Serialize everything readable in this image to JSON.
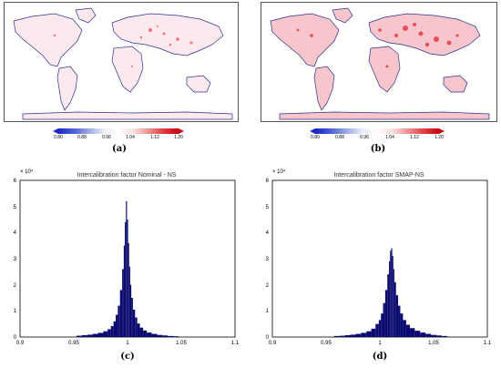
{
  "panels": {
    "a": "(a)",
    "b": "(b)",
    "c": "(c)",
    "d": "(d)"
  },
  "colorbar": {
    "ticks": [
      "0.80",
      "0.88",
      "0.96",
      "1.04",
      "1.12",
      "1.20"
    ],
    "colors": [
      "#1a28c8",
      "#ffffff",
      "#c80010"
    ]
  },
  "chart_data": [
    {
      "type": "bar",
      "title": "Intercalibration factor Nominal - NS",
      "y_multiplier_label": "× 10⁴",
      "xlim": [
        0.9,
        1.1
      ],
      "ylim": [
        0,
        6
      ],
      "x_ticks": [
        "0.9",
        "0.95",
        "1",
        "1.05",
        "1.1"
      ],
      "y_ticks": [
        "0",
        "1",
        "2",
        "3",
        "4",
        "5",
        "6"
      ],
      "bar_color": "#0a0a6e",
      "x": [
        0.955,
        0.96,
        0.965,
        0.97,
        0.975,
        0.98,
        0.983,
        0.986,
        0.988,
        0.99,
        0.992,
        0.994,
        0.996,
        0.997,
        0.998,
        0.999,
        1.0,
        1.001,
        1.002,
        1.003,
        1.004,
        1.006,
        1.008,
        1.01,
        1.013,
        1.016,
        1.02,
        1.025,
        1.03,
        1.035,
        1.04,
        1.045
      ],
      "values": [
        0.05,
        0.07,
        0.09,
        0.12,
        0.16,
        0.22,
        0.3,
        0.42,
        0.6,
        0.85,
        1.2,
        1.8,
        2.6,
        3.5,
        4.4,
        5.2,
        4.5,
        3.6,
        2.7,
        2.0,
        1.5,
        1.05,
        0.75,
        0.52,
        0.36,
        0.25,
        0.17,
        0.12,
        0.08,
        0.06,
        0.04,
        0.03
      ]
    },
    {
      "type": "bar",
      "title": "Intercalibration factor SMAP-NS",
      "y_multiplier_label": "× 10⁴",
      "xlim": [
        0.9,
        1.1
      ],
      "ylim": [
        0,
        6
      ],
      "x_ticks": [
        "0.9",
        "0.95",
        "1",
        "1.05",
        "1.1"
      ],
      "y_ticks": [
        "0",
        "1",
        "2",
        "3",
        "4",
        "5",
        "6"
      ],
      "bar_color": "#0a0a6e",
      "x": [
        0.96,
        0.965,
        0.97,
        0.975,
        0.98,
        0.985,
        0.99,
        0.994,
        0.998,
        1.0,
        1.002,
        1.004,
        1.006,
        1.008,
        1.009,
        1.01,
        1.011,
        1.012,
        1.013,
        1.014,
        1.016,
        1.018,
        1.02,
        1.023,
        1.026,
        1.03,
        1.035,
        1.04,
        1.045,
        1.05,
        1.055,
        1.06
      ],
      "values": [
        0.04,
        0.05,
        0.07,
        0.09,
        0.12,
        0.16,
        0.22,
        0.32,
        0.5,
        0.65,
        0.9,
        1.3,
        1.8,
        2.4,
        2.9,
        3.3,
        3.4,
        3.1,
        2.6,
        2.1,
        1.6,
        1.2,
        0.9,
        0.65,
        0.47,
        0.34,
        0.24,
        0.17,
        0.12,
        0.08,
        0.06,
        0.04
      ]
    }
  ]
}
